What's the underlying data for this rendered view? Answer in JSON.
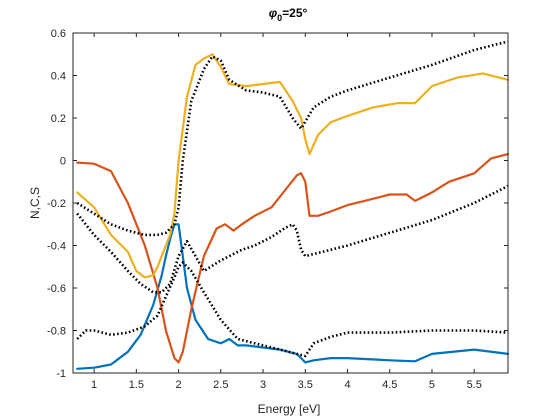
{
  "chart_data": {
    "type": "line",
    "title_symbol": "φ",
    "title_subscript": "0",
    "title_value": "=25°",
    "xlabel": "Energy [eV]",
    "ylabel": "N,C,S",
    "xlim": [
      0.75,
      5.9
    ],
    "ylim": [
      -1,
      0.6
    ],
    "xticks": [
      1,
      1.5,
      2,
      2.5,
      3,
      3.5,
      4,
      4.5,
      5,
      5.5
    ],
    "xtick_labels": [
      "1",
      "1.5",
      "2",
      "2.5",
      "3",
      "3.5",
      "4",
      "4.5",
      "5",
      "5.5"
    ],
    "yticks": [
      -1,
      -0.8,
      -0.6,
      -0.4,
      -0.2,
      0,
      0.2,
      0.4,
      0.6
    ],
    "ytick_labels": [
      "-1",
      "-0.8",
      "-0.6",
      "-0.4",
      "-0.2",
      "0",
      "0.2",
      "0.4",
      "0.6"
    ],
    "grid": false,
    "series": [
      {
        "color": "#0072BD",
        "style": "solid",
        "x": [
          0.8,
          1.0,
          1.2,
          1.4,
          1.55,
          1.7,
          1.8,
          1.85,
          1.9,
          1.95,
          2.0,
          2.05,
          2.1,
          2.2,
          2.35,
          2.5,
          2.6,
          2.7,
          2.8,
          3.0,
          3.2,
          3.4,
          3.5,
          3.6,
          3.8,
          4.0,
          4.5,
          4.8,
          5.0,
          5.5,
          5.9
        ],
        "y": [
          -0.98,
          -0.975,
          -0.96,
          -0.9,
          -0.82,
          -0.68,
          -0.54,
          -0.45,
          -0.37,
          -0.3,
          -0.3,
          -0.45,
          -0.6,
          -0.75,
          -0.84,
          -0.86,
          -0.84,
          -0.87,
          -0.87,
          -0.88,
          -0.89,
          -0.91,
          -0.95,
          -0.94,
          -0.93,
          -0.93,
          -0.94,
          -0.945,
          -0.91,
          -0.89,
          -0.91
        ]
      },
      {
        "color": "#D95319",
        "style": "solid",
        "x": [
          0.8,
          1.0,
          1.2,
          1.4,
          1.6,
          1.75,
          1.85,
          1.95,
          2.0,
          2.05,
          2.15,
          2.3,
          2.45,
          2.55,
          2.65,
          2.75,
          2.9,
          3.1,
          3.3,
          3.4,
          3.45,
          3.5,
          3.55,
          3.65,
          3.8,
          4.0,
          4.2,
          4.5,
          4.7,
          4.8,
          5.0,
          5.2,
          5.5,
          5.7,
          5.9
        ],
        "y": [
          -0.01,
          -0.015,
          -0.05,
          -0.2,
          -0.4,
          -0.6,
          -0.8,
          -0.93,
          -0.95,
          -0.9,
          -0.7,
          -0.45,
          -0.32,
          -0.3,
          -0.33,
          -0.3,
          -0.26,
          -0.22,
          -0.12,
          -0.07,
          -0.06,
          -0.1,
          -0.26,
          -0.26,
          -0.24,
          -0.21,
          -0.19,
          -0.16,
          -0.16,
          -0.19,
          -0.15,
          -0.1,
          -0.06,
          0.01,
          0.03
        ]
      },
      {
        "color": "#EDB120",
        "style": "solid",
        "x": [
          0.8,
          1.0,
          1.2,
          1.4,
          1.5,
          1.6,
          1.7,
          1.75,
          1.8,
          1.9,
          1.95,
          2.0,
          2.1,
          2.2,
          2.3,
          2.4,
          2.5,
          2.6,
          2.8,
          3.0,
          3.2,
          3.35,
          3.45,
          3.5,
          3.55,
          3.65,
          3.8,
          4.0,
          4.3,
          4.6,
          4.8,
          5.0,
          5.3,
          5.6,
          5.9
        ],
        "y": [
          -0.15,
          -0.22,
          -0.35,
          -0.43,
          -0.52,
          -0.55,
          -0.54,
          -0.5,
          -0.45,
          -0.35,
          -0.25,
          0.0,
          0.3,
          0.45,
          0.48,
          0.5,
          0.44,
          0.36,
          0.35,
          0.36,
          0.37,
          0.28,
          0.2,
          0.1,
          0.03,
          0.12,
          0.18,
          0.21,
          0.25,
          0.27,
          0.27,
          0.35,
          0.39,
          0.41,
          0.38
        ]
      },
      {
        "color": "#000000",
        "style": "dotted",
        "x": [
          0.8,
          1.0,
          1.2,
          1.4,
          1.6,
          1.75,
          1.85,
          1.95,
          2.0,
          2.05,
          2.15,
          2.3,
          2.4,
          2.5,
          2.6,
          2.8,
          3.0,
          3.2,
          3.35,
          3.45,
          3.6,
          3.8,
          4.0,
          4.5,
          5.0,
          5.5,
          5.9
        ],
        "y": [
          -0.2,
          -0.25,
          -0.3,
          -0.33,
          -0.35,
          -0.35,
          -0.34,
          -0.3,
          -0.22,
          0.0,
          0.28,
          0.43,
          0.49,
          0.47,
          0.38,
          0.33,
          0.32,
          0.3,
          0.2,
          0.15,
          0.25,
          0.3,
          0.33,
          0.39,
          0.45,
          0.52,
          0.56
        ]
      },
      {
        "color": "#000000",
        "style": "dotted",
        "x": [
          0.8,
          1.0,
          1.2,
          1.4,
          1.55,
          1.7,
          1.8,
          1.9,
          2.0,
          2.1,
          2.2,
          2.3,
          2.5,
          2.65,
          2.75,
          2.9,
          3.1,
          3.25,
          3.35,
          3.4,
          3.45,
          3.5,
          3.6,
          3.8,
          4.0,
          4.5,
          5.0,
          5.5,
          5.9
        ],
        "y": [
          -0.25,
          -0.35,
          -0.43,
          -0.52,
          -0.58,
          -0.62,
          -0.62,
          -0.58,
          -0.45,
          -0.38,
          -0.45,
          -0.52,
          -0.47,
          -0.44,
          -0.42,
          -0.4,
          -0.36,
          -0.32,
          -0.3,
          -0.33,
          -0.42,
          -0.45,
          -0.44,
          -0.42,
          -0.4,
          -0.34,
          -0.28,
          -0.2,
          -0.12
        ]
      },
      {
        "color": "#000000",
        "style": "dotted",
        "x": [
          0.8,
          0.9,
          1.0,
          1.2,
          1.4,
          1.6,
          1.75,
          1.85,
          1.95,
          2.0,
          2.05,
          2.15,
          2.3,
          2.5,
          2.7,
          3.0,
          3.2,
          3.4,
          3.5,
          3.6,
          3.8,
          4.0,
          4.5,
          5.0,
          5.5,
          5.9
        ],
        "y": [
          -0.84,
          -0.8,
          -0.8,
          -0.82,
          -0.81,
          -0.78,
          -0.73,
          -0.64,
          -0.55,
          -0.5,
          -0.48,
          -0.52,
          -0.62,
          -0.75,
          -0.84,
          -0.87,
          -0.89,
          -0.91,
          -0.92,
          -0.86,
          -0.83,
          -0.81,
          -0.81,
          -0.8,
          -0.8,
          -0.81
        ]
      }
    ]
  }
}
